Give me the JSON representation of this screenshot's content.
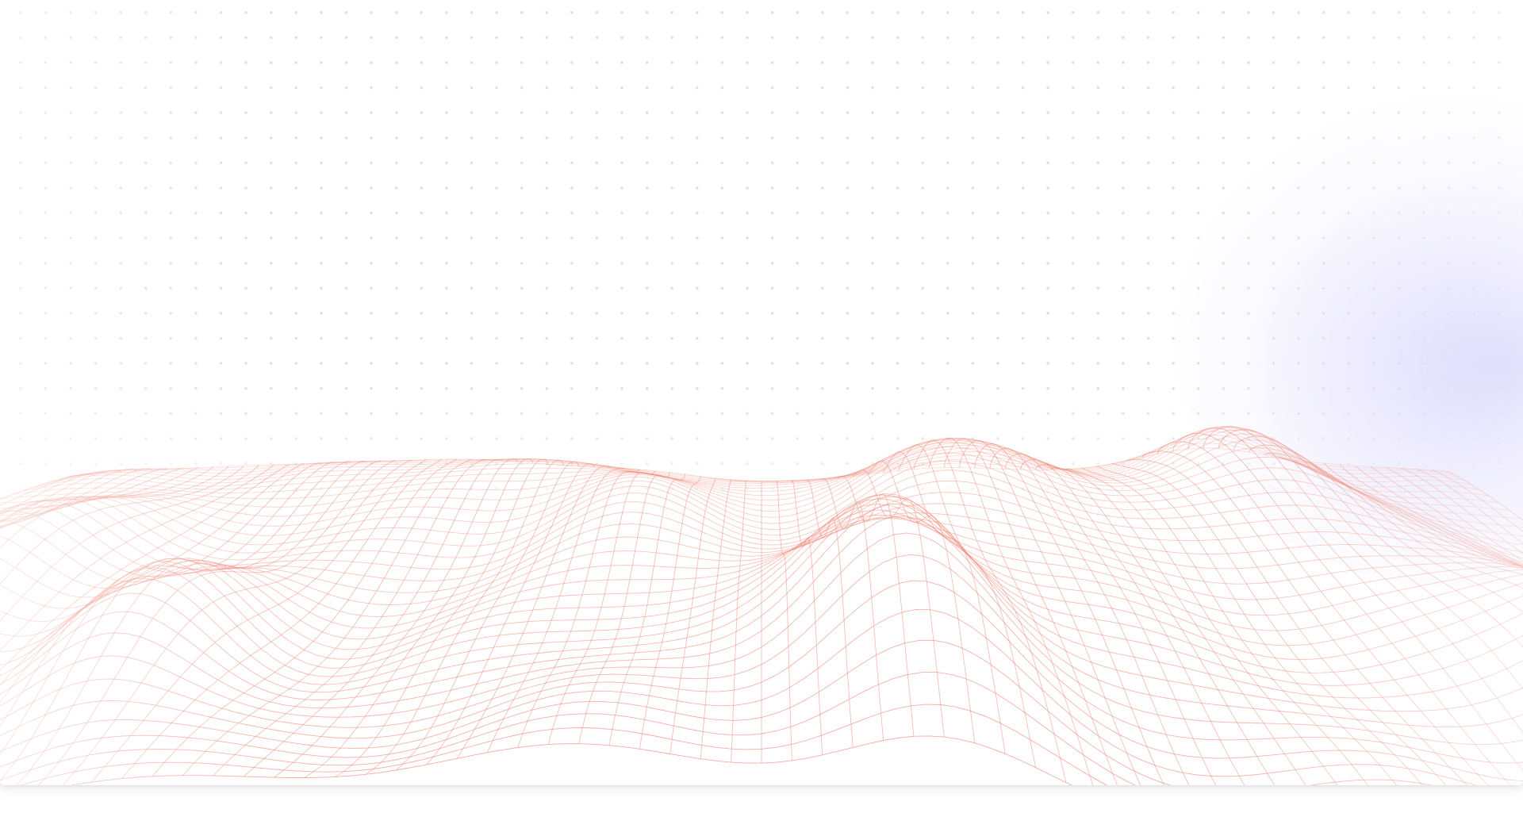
{
  "canvas": {
    "background_color": "#ffffff",
    "dot_color": "#cfcfd4",
    "glow_color": "#c4befa",
    "mesh_color": "#ef8a7a"
  },
  "decoration": {
    "pattern": "dot-grid",
    "terrain": "wireframe-mesh-mountains",
    "glow": "lavender-radial-glow"
  }
}
